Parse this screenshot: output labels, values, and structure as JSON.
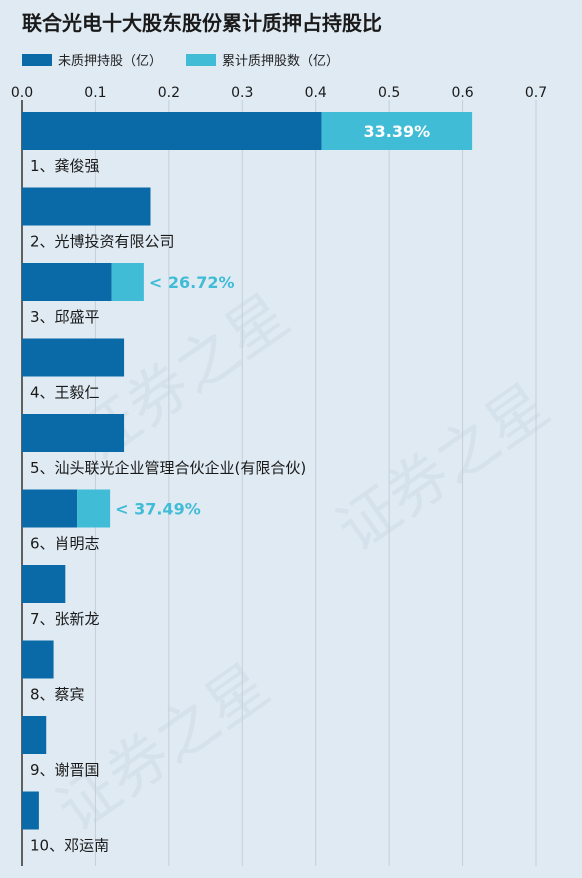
{
  "title": "联合光电十大股东股份累计质押占持股比",
  "colors": {
    "unpledged": "#0a6aa7",
    "pledged": "#41bcd6",
    "grid": "#c6cfd8",
    "text": "#1a1a1a"
  },
  "legend": {
    "unpledged_label": "未质押持股（亿）",
    "pledged_label": "累计质押股数（亿）"
  },
  "chart_data": {
    "type": "bar",
    "orientation": "horizontal",
    "stacked": true,
    "xlim": [
      0,
      0.7
    ],
    "xticks": [
      "0.0",
      "0.1",
      "0.2",
      "0.3",
      "0.4",
      "0.5",
      "0.6",
      "0.7"
    ],
    "tick_values": [
      0,
      0.1,
      0.2,
      0.3,
      0.4,
      0.5,
      0.6,
      0.7
    ],
    "grid": true,
    "legend_position": "top-left",
    "categories": [
      "1、龚俊强",
      "2、光博投资有限公司",
      "3、邱盛平",
      "4、王毅仁",
      "5、汕头联光企业管理合伙企业(有限合伙)",
      "6、肖明志",
      "7、张新龙",
      "8、蔡宾",
      "9、谢晋国",
      "10、邓运南"
    ],
    "series": [
      {
        "name": "未质押持股（亿）",
        "values": [
          0.408,
          0.175,
          0.122,
          0.139,
          0.139,
          0.075,
          0.059,
          0.043,
          0.033,
          0.023
        ]
      },
      {
        "name": "累计质押股数（亿）",
        "values": [
          0.205,
          0.0,
          0.044,
          0.0,
          0.0,
          0.045,
          0.0,
          0.0,
          0.0,
          0.0
        ]
      }
    ],
    "pledge_ratio_labels": [
      "33.39%",
      "",
      "26.72%",
      "",
      "",
      "37.49%",
      "",
      "",
      "",
      ""
    ]
  }
}
